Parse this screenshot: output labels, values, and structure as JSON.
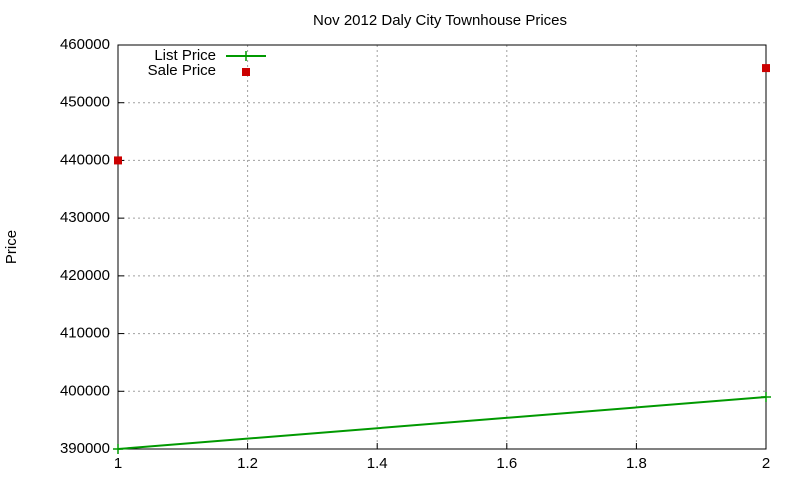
{
  "chart_data": {
    "type": "line",
    "title": "Nov 2012 Daly City Townhouse Prices",
    "y_label": "Price",
    "x": [
      1,
      2
    ],
    "series": [
      {
        "name": "List Price",
        "color": "#009900",
        "style": "linespoints",
        "values": [
          390000,
          399000
        ]
      },
      {
        "name": "Sale Price",
        "color": "#cc0000",
        "style": "points",
        "values": [
          440000,
          456000
        ]
      }
    ],
    "xlim": [
      1,
      2
    ],
    "xticks": [
      1,
      1.2,
      1.4,
      1.6,
      1.8,
      2
    ],
    "ylim": [
      390000,
      460000
    ],
    "yticks": [
      390000,
      400000,
      410000,
      420000,
      430000,
      440000,
      450000,
      460000
    ],
    "grid": true,
    "legend": "top-left"
  }
}
